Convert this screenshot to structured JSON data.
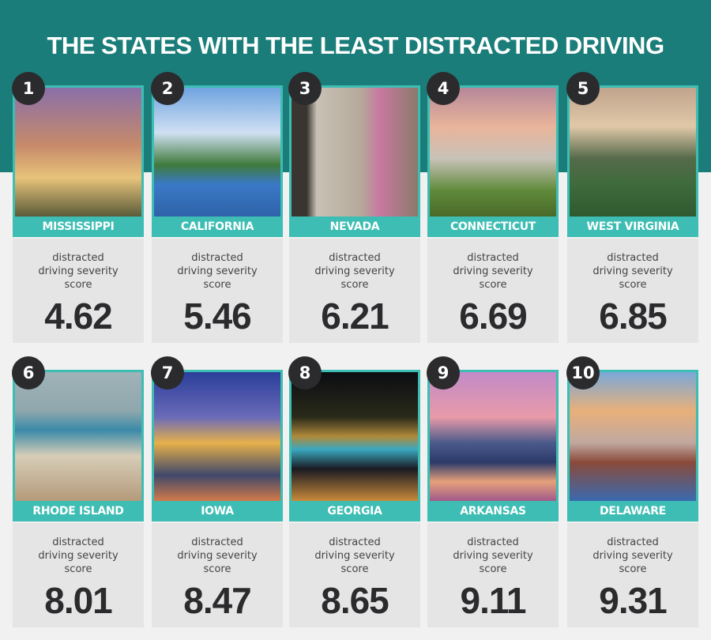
{
  "title": "THE STATES WITH THE LEAST DISTRACTED DRIVING",
  "caption": [
    "distracted",
    "driving severity",
    "score"
  ],
  "colors": {
    "header": "#1b7d79",
    "accent": "#3dbdb3",
    "badge": "#2b2b2e",
    "score_box": "#e5e5e5"
  },
  "states": [
    {
      "rank": "1",
      "name": "MISSISSIPPI",
      "score": "4.62",
      "photo": "city skyline at dusk with domed capitol"
    },
    {
      "rank": "2",
      "name": "CALIFORNIA",
      "score": "5.46",
      "photo": "city skyline over lake"
    },
    {
      "rank": "3",
      "name": "NEVADA",
      "score": "6.21",
      "photo": "stone building with blossoming tree"
    },
    {
      "rank": "4",
      "name": "CONNECTICUT",
      "score": "6.69",
      "photo": "city skyline at sunset"
    },
    {
      "rank": "5",
      "name": "WEST VIRGINIA",
      "score": "6.85",
      "photo": "river valley with town"
    },
    {
      "rank": "6",
      "name": "RHODE ISLAND",
      "score": "8.01",
      "photo": "coastal town by the sea"
    },
    {
      "rank": "7",
      "name": "IOWA",
      "score": "8.47",
      "photo": "capitol building at night"
    },
    {
      "rank": "8",
      "name": "GEORGIA",
      "score": "8.65",
      "photo": "lit bridge over river at night"
    },
    {
      "rank": "9",
      "name": "ARKANSAS",
      "score": "9.11",
      "photo": "city skyline with bridge at dusk"
    },
    {
      "rank": "10",
      "name": "DELAWARE",
      "score": "9.31",
      "photo": "city skyline across water at sunset"
    }
  ]
}
